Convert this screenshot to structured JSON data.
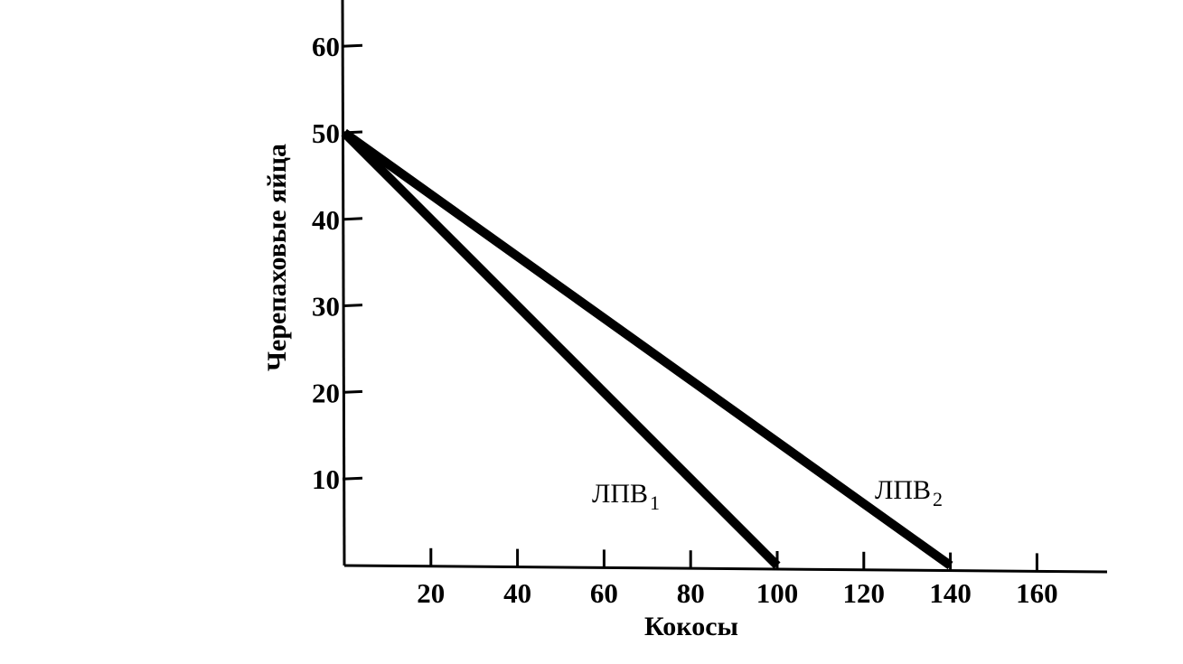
{
  "chart_data": {
    "type": "line",
    "xlabel": "Кокосы",
    "ylabel": "Черепаховые яйца",
    "xlim": [
      0,
      175
    ],
    "ylim": [
      0,
      65
    ],
    "x_ticks": [
      20,
      40,
      60,
      80,
      100,
      120,
      140,
      160
    ],
    "y_ticks": [
      10,
      20,
      30,
      40,
      50,
      60
    ],
    "grid": false,
    "legend": "none",
    "series": [
      {
        "name": "ЛПВ1",
        "label_main": "ЛПВ",
        "label_sub": "1",
        "x": [
          0,
          100
        ],
        "y": [
          50,
          0
        ],
        "color": "#000000"
      },
      {
        "name": "ЛПВ2",
        "label_main": "ЛПВ",
        "label_sub": "2",
        "x": [
          0,
          140
        ],
        "y": [
          50,
          0
        ],
        "color": "#000000"
      }
    ]
  }
}
